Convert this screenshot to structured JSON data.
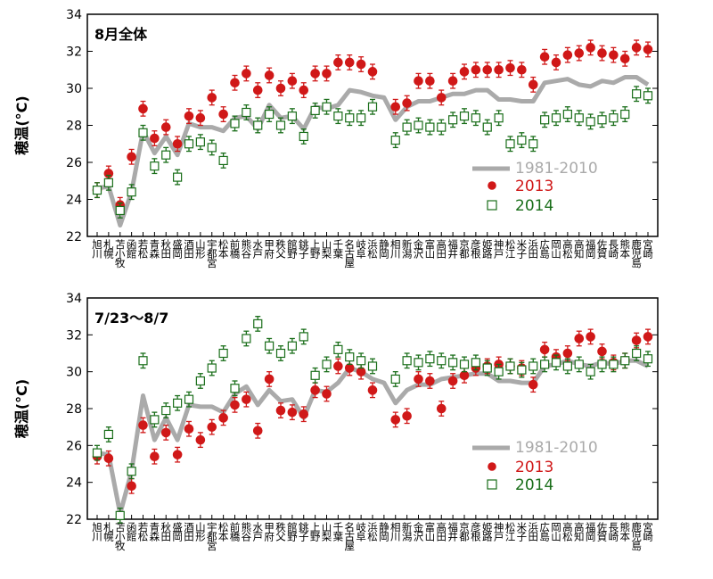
{
  "chart_data": [
    {
      "type": "line",
      "title": "8月全体",
      "ylabel": "穂温(°C)",
      "xlabel": "",
      "ylim": [
        22,
        34
      ],
      "yticks": [
        22,
        24,
        26,
        28,
        30,
        32,
        34
      ],
      "grid": false,
      "legend_position": "right-lower",
      "categories": [
        "旭川",
        "札幌",
        "苫小牧",
        "函館",
        "若松",
        "青森",
        "秋田",
        "盛岡",
        "酒田",
        "山形",
        "宇都宮",
        "松本",
        "前橋",
        "熊谷",
        "水戸",
        "甲府",
        "秩父",
        "館野",
        "銚子",
        "上野",
        "山梨",
        "千葉",
        "名古屋",
        "岐阜",
        "浜松",
        "静岡",
        "相川",
        "新潟",
        "金沢",
        "富山",
        "高田",
        "福井",
        "京都",
        "彦根",
        "姫路",
        "神戸",
        "松江",
        "米子",
        "浜田",
        "広島",
        "岡山",
        "高松",
        "高知",
        "福岡",
        "佐賀",
        "長崎",
        "熊本",
        "鹿児島",
        "宮崎"
      ],
      "series": [
        {
          "name": "1981-2010",
          "style": "line",
          "color": "#aaaaaa",
          "values": [
            24.6,
            24.7,
            22.6,
            24.4,
            27.7,
            26.5,
            27.4,
            26.4,
            28.1,
            27.9,
            27.9,
            27.7,
            28.4,
            28.5,
            27.8,
            29.1,
            28.4,
            28.5,
            27.8,
            29.0,
            28.9,
            29.1,
            29.9,
            29.8,
            29.6,
            29.5,
            28.3,
            29.0,
            29.3,
            29.3,
            29.5,
            29.7,
            29.7,
            29.9,
            29.9,
            29.4,
            29.4,
            29.3,
            29.3,
            30.3,
            30.4,
            30.5,
            30.2,
            30.1,
            30.4,
            30.3,
            30.6,
            30.6,
            30.2
          ]
        },
        {
          "name": "2013",
          "style": "filled-circle",
          "color": "#d01818",
          "values": [
            24.5,
            25.4,
            23.7,
            26.3,
            28.9,
            27.3,
            27.9,
            27.0,
            28.5,
            28.4,
            29.5,
            28.6,
            30.3,
            30.8,
            29.9,
            30.7,
            30.0,
            30.4,
            29.9,
            30.8,
            30.8,
            31.4,
            31.4,
            31.3,
            30.9,
            null,
            29.0,
            29.2,
            30.4,
            30.4,
            29.5,
            30.4,
            30.9,
            31.0,
            31.0,
            31.0,
            31.1,
            31.0,
            30.2,
            31.7,
            31.4,
            31.8,
            31.9,
            32.2,
            31.9,
            31.8,
            31.6,
            32.2,
            32.1
          ]
        },
        {
          "name": "2014",
          "style": "open-square",
          "color": "#1a6e1a",
          "values": [
            24.5,
            24.9,
            23.4,
            24.4,
            27.6,
            25.8,
            26.4,
            25.2,
            27.0,
            27.1,
            26.8,
            26.1,
            28.1,
            28.7,
            28.0,
            28.6,
            28.0,
            28.5,
            27.4,
            28.8,
            29.0,
            28.5,
            28.4,
            28.4,
            29.0,
            null,
            27.2,
            27.9,
            28.0,
            27.9,
            27.9,
            28.3,
            28.5,
            28.4,
            27.9,
            28.4,
            27.0,
            27.2,
            27.0,
            28.3,
            28.4,
            28.6,
            28.4,
            28.2,
            28.3,
            28.4,
            28.6,
            29.7,
            29.6
          ]
        }
      ]
    },
    {
      "type": "line",
      "title": "7/23〜8/7",
      "ylabel": "穂温(°C)",
      "xlabel": "",
      "ylim": [
        22,
        34
      ],
      "yticks": [
        22,
        24,
        26,
        28,
        30,
        32,
        34
      ],
      "grid": false,
      "legend_position": "right-lower",
      "categories": [
        "旭川",
        "札幌",
        "苫小牧",
        "函館",
        "若松",
        "青森",
        "秋田",
        "盛岡",
        "酒田",
        "山形",
        "宇都宮",
        "松本",
        "前橋",
        "熊谷",
        "水戸",
        "甲府",
        "秩父",
        "館野",
        "銚子",
        "上野",
        "山梨",
        "千葉",
        "名古屋",
        "岐阜",
        "浜松",
        "静岡",
        "相川",
        "新潟",
        "金沢",
        "富山",
        "高田",
        "福井",
        "京都",
        "彦根",
        "姫路",
        "神戸",
        "松江",
        "米子",
        "浜田",
        "広島",
        "岡山",
        "高松",
        "高知",
        "福岡",
        "佐賀",
        "長崎",
        "熊本",
        "鹿児島",
        "宮崎"
      ],
      "series": [
        {
          "name": "1981-2010",
          "style": "line",
          "color": "#aaaaaa",
          "values": [
            25.6,
            25.5,
            22.3,
            24.6,
            28.7,
            26.3,
            27.5,
            26.3,
            28.2,
            28.1,
            28.1,
            27.8,
            28.8,
            29.2,
            28.2,
            29.0,
            28.4,
            28.5,
            27.5,
            29.0,
            28.9,
            29.4,
            30.2,
            30.0,
            29.6,
            29.4,
            28.3,
            29.0,
            29.3,
            29.3,
            29.6,
            29.7,
            29.8,
            29.9,
            29.9,
            29.5,
            29.5,
            29.4,
            29.4,
            30.3,
            30.4,
            30.6,
            30.4,
            30.3,
            30.5,
            30.4,
            30.6,
            30.6,
            30.3
          ]
        },
        {
          "name": "2013",
          "style": "filled-circle",
          "color": "#d01818",
          "values": [
            25.4,
            25.3,
            null,
            23.8,
            27.1,
            25.4,
            26.7,
            25.5,
            26.9,
            26.3,
            27.0,
            27.5,
            28.2,
            28.5,
            26.8,
            29.6,
            27.9,
            27.8,
            27.7,
            29.0,
            28.8,
            30.3,
            30.2,
            30.0,
            29.0,
            null,
            27.4,
            27.6,
            29.6,
            29.5,
            28.0,
            29.5,
            29.8,
            30.2,
            30.3,
            30.4,
            30.3,
            30.2,
            29.3,
            31.2,
            30.8,
            31.0,
            31.8,
            31.9,
            31.1,
            30.5,
            30.6,
            31.7,
            31.9
          ]
        },
        {
          "name": "2014",
          "style": "open-square",
          "color": "#1a6e1a",
          "values": [
            25.6,
            26.6,
            22.2,
            24.6,
            30.6,
            27.4,
            27.9,
            28.3,
            28.5,
            29.5,
            30.2,
            31.0,
            29.1,
            31.8,
            32.6,
            31.4,
            31.0,
            31.4,
            31.9,
            29.8,
            30.4,
            31.2,
            30.8,
            30.6,
            30.3,
            null,
            29.6,
            30.6,
            30.5,
            30.7,
            30.6,
            30.5,
            30.4,
            30.5,
            30.2,
            30.0,
            30.3,
            30.1,
            30.3,
            30.4,
            30.5,
            30.3,
            30.4,
            30.0,
            30.4,
            30.4,
            30.6,
            31.0,
            30.7
          ]
        }
      ]
    }
  ]
}
